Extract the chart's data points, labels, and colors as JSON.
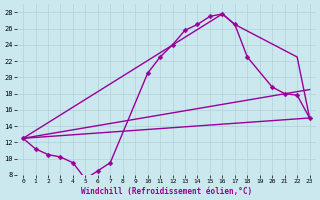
{
  "xlabel": "Windchill (Refroidissement éolien,°C)",
  "xlim": [
    -0.5,
    23.5
  ],
  "ylim": [
    8,
    29
  ],
  "xticks": [
    0,
    1,
    2,
    3,
    4,
    5,
    6,
    7,
    8,
    9,
    10,
    11,
    12,
    13,
    14,
    15,
    16,
    17,
    18,
    19,
    20,
    21,
    22,
    23
  ],
  "yticks": [
    8,
    10,
    12,
    14,
    16,
    18,
    20,
    22,
    24,
    26,
    28
  ],
  "bg_color": "#cce8ef",
  "grid_color": "#b0d0d8",
  "line_color": "#990099",
  "line_width": 1.0,
  "markersize": 2.5,
  "line1_marked": {
    "x": [
      0,
      1,
      2,
      3,
      4,
      5,
      6,
      7,
      10,
      11,
      12,
      13,
      14,
      15,
      16,
      17,
      18,
      20,
      21,
      22,
      23
    ],
    "y": [
      12.5,
      11.2,
      10.5,
      10.2,
      9.5,
      7.5,
      8.5,
      9.5,
      20.5,
      22.5,
      24.0,
      25.8,
      26.5,
      27.5,
      27.8,
      26.5,
      22.5,
      18.8,
      18.0,
      17.8,
      15.0
    ]
  },
  "line2_upper": {
    "x": [
      0,
      16,
      17,
      22,
      23
    ],
    "y": [
      12.5,
      27.8,
      26.5,
      22.5,
      15.0
    ]
  },
  "line3_mid": {
    "x": [
      0,
      23
    ],
    "y": [
      12.5,
      18.5
    ]
  },
  "line4_low": {
    "x": [
      0,
      23
    ],
    "y": [
      12.5,
      15.0
    ]
  }
}
